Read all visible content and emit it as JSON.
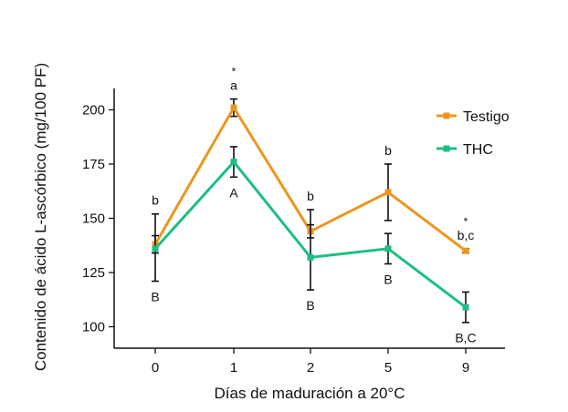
{
  "chart_data": {
    "type": "line",
    "categories": [
      "0",
      "1",
      "2",
      "5",
      "9"
    ],
    "xlabel": "Días de maduración a 20°C",
    "ylabel": "Contenido de ácido L-ascórbico (mg/100 PF)",
    "ylim": [
      95,
      210
    ],
    "yticks": [
      100,
      125,
      150,
      175,
      200
    ],
    "grid": false,
    "legend_position": "top-right",
    "series": [
      {
        "name": "Testigo",
        "color": "#ED961D",
        "values": [
          138,
          201,
          144,
          162,
          135
        ],
        "err_low": [
          4,
          4,
          3,
          13,
          1
        ],
        "err_high": [
          14,
          4,
          10,
          13,
          1
        ],
        "letters": [
          "b",
          "a",
          "b",
          "b",
          "b,c"
        ],
        "stars": [
          "",
          "*",
          "",
          "",
          "*"
        ]
      },
      {
        "name": "THC",
        "color": "#1DBE82",
        "values": [
          136,
          176,
          132,
          136,
          109
        ],
        "err_low": [
          15,
          7,
          15,
          7,
          7
        ],
        "err_high": [
          6,
          7,
          15,
          7,
          7
        ],
        "letters": [
          "B",
          "A",
          "B",
          "B",
          "B,C"
        ]
      }
    ]
  }
}
